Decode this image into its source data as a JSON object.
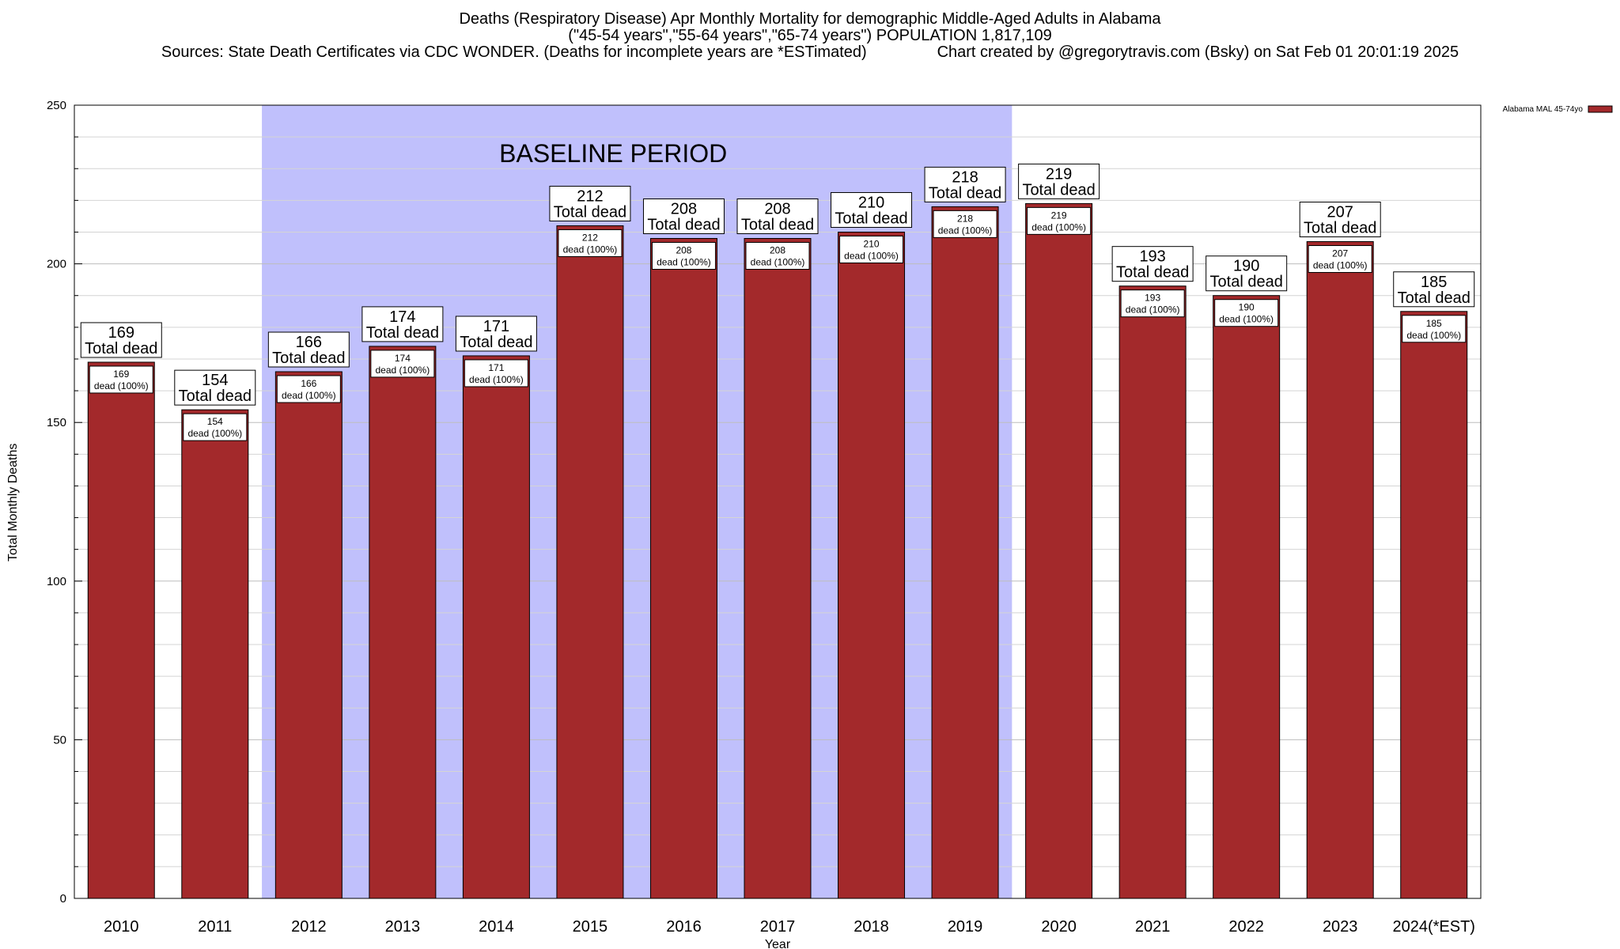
{
  "header": {
    "title": "Deaths (Respiratory Disease) Apr Monthly Mortality for demographic Middle-Aged Adults in Alabama",
    "subtitle": "(\"45-54 years\",\"55-64 years\",\"65-74 years\") POPULATION 1,817,109",
    "sources": "Sources: State Death Certificates via CDC WONDER. (Deaths for incomplete years are *ESTimated)",
    "credit": "Chart created by @gregorytravis.com (Bsky) on Sat Feb 01 20:01:19 2025"
  },
  "chart_data": {
    "type": "bar",
    "title": "Deaths (Respiratory Disease) Apr Monthly Mortality for demographic Middle-Aged Adults in Alabama",
    "xlabel": "Year",
    "ylabel": "Total Monthly Deaths",
    "ylim": [
      0,
      250
    ],
    "yticks": [
      0,
      50,
      100,
      150,
      200,
      250
    ],
    "grid": true,
    "legend_position": "top-right",
    "categories": [
      "2010",
      "2011",
      "2012",
      "2013",
      "2014",
      "2015",
      "2016",
      "2017",
      "2018",
      "2019",
      "2020",
      "2021",
      "2022",
      "2023",
      "2024(*EST)"
    ],
    "series": [
      {
        "name": "Alabama MAL 45-74yo",
        "color": "#a3292b",
        "values": [
          169,
          154,
          166,
          174,
          171,
          212,
          208,
          208,
          210,
          218,
          219,
          193,
          190,
          207,
          185
        ]
      }
    ],
    "total_label_suffix": "Total dead",
    "inner_label_suffix": "dead (100%)",
    "baseline": {
      "label": "BASELINE PERIOD",
      "from": "2012",
      "to": "2019",
      "color": "#c0c0fc"
    }
  },
  "colors": {
    "bar": "#a3292b",
    "baseline_band": "#c0c0fc",
    "grid": "#c8c8c8"
  }
}
